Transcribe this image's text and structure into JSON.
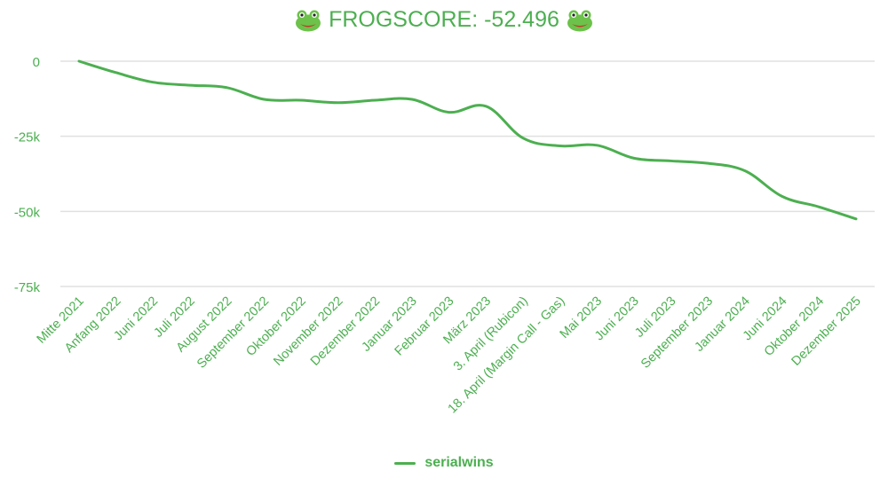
{
  "title": {
    "text": "FROGSCORE: -52.496",
    "left_icon": "frog-face-icon",
    "right_icon": "frog-face-icon"
  },
  "colors": {
    "line": "#4caf50",
    "text": "#4caf50",
    "grid": "#e0e0e0"
  },
  "legend": {
    "label": "serialwins"
  },
  "chart_data": {
    "type": "line",
    "title": "🐸 FROGSCORE: -52.496 🐸",
    "xlabel": "",
    "ylabel": "",
    "ylim": [
      -75000,
      0
    ],
    "yticks": [
      0,
      -25000,
      -50000,
      -75000
    ],
    "ytick_labels": [
      "0",
      "-25k",
      "-50k",
      "-75k"
    ],
    "grid": true,
    "legend_position": "bottom",
    "categories": [
      "Mitte 2021",
      "Anfang 2022",
      "Juni 2022",
      "Juli 2022",
      "August 2022",
      "September 2022",
      "Oktober 2022",
      "November 2022",
      "Dezember 2022",
      "Januar 2023",
      "Februar 2023",
      "März 2023",
      "3. April (Rubicon)",
      "18. April (Margin Call - Gas)",
      "Mai 2023",
      "Juni 2023",
      "Juli 2023",
      "September 2023",
      "Januar 2024",
      "Juni 2024",
      "Oktober 2024",
      "Dezember 2025"
    ],
    "series": [
      {
        "name": "serialwins",
        "values": [
          0,
          -3800,
          -7000,
          -8000,
          -8800,
          -12700,
          -13000,
          -13800,
          -13000,
          -12700,
          -17000,
          -15000,
          -25600,
          -28200,
          -28000,
          -32300,
          -33200,
          -34000,
          -36500,
          -45000,
          -48500,
          -52496
        ]
      }
    ]
  }
}
